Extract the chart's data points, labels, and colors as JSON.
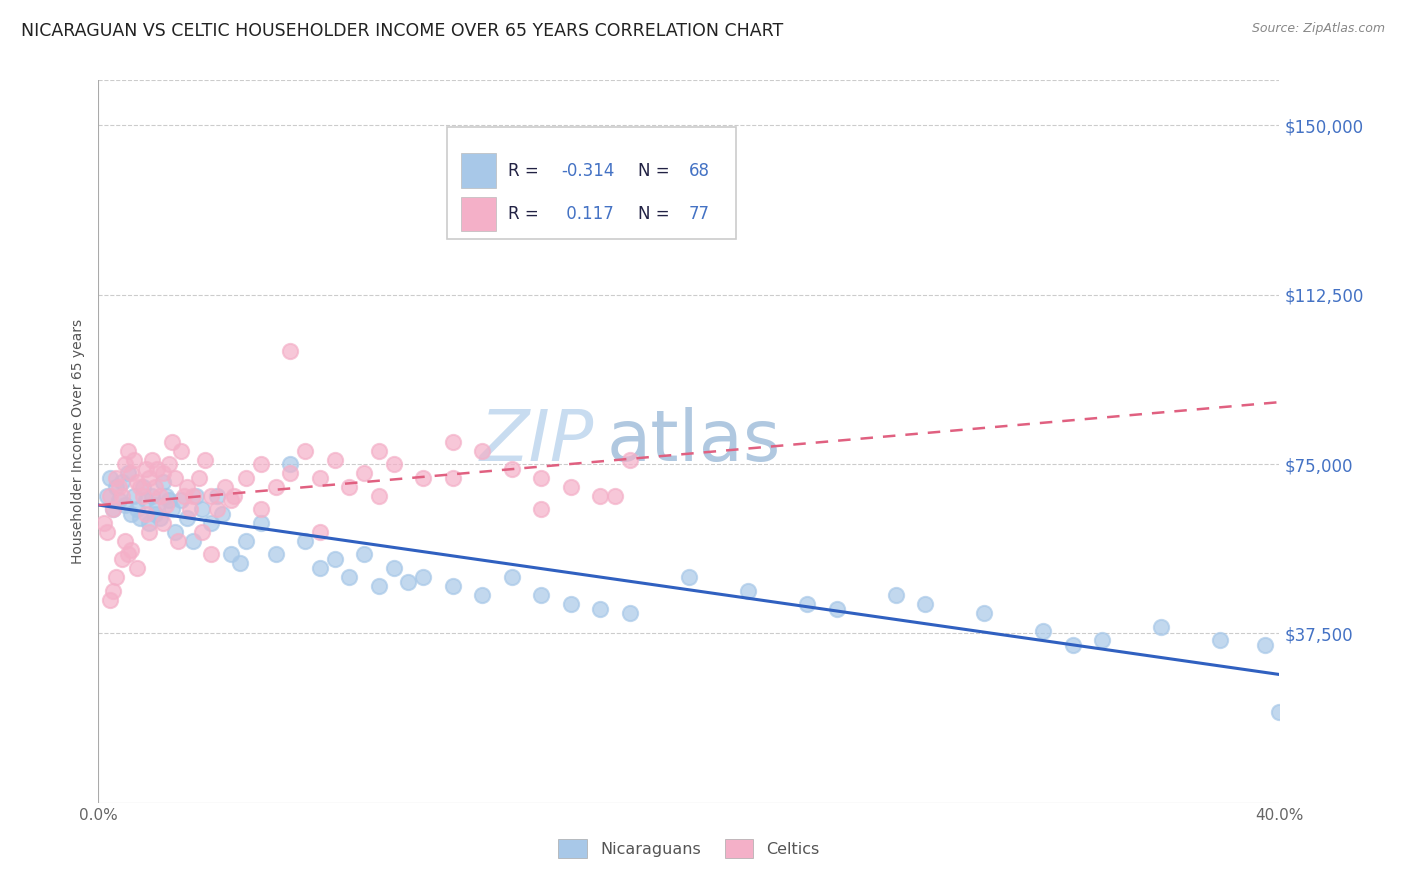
{
  "title": "NICARAGUAN VS CELTIC HOUSEHOLDER INCOME OVER 65 YEARS CORRELATION CHART",
  "source": "Source: ZipAtlas.com",
  "ylabel": "Householder Income Over 65 years",
  "yticks_labels": [
    "$150,000",
    "$112,500",
    "$75,000",
    "$37,500"
  ],
  "ytick_values": [
    150000,
    112500,
    75000,
    37500
  ],
  "ymin": 0,
  "ymax": 160000,
  "xmin": 0,
  "xmax": 40,
  "blue_R": -0.314,
  "blue_N": 68,
  "pink_R": 0.117,
  "pink_N": 77,
  "blue_color": "#A8C8E8",
  "pink_color": "#F4B0C8",
  "blue_line_color": "#3060C0",
  "pink_line_color": "#E06080",
  "background_color": "#FFFFFF",
  "title_color": "#222222",
  "title_fontsize": 12.5,
  "watermark_text": "ZIP",
  "watermark_text2": "atlas",
  "watermark_color1": "#C8DCF0",
  "watermark_color2": "#B0C8E0",
  "legend_border_color": "#CCCCCC",
  "grid_color": "#CCCCCC",
  "ytick_color": "#4472C4",
  "xtick_color": "#666666",
  "note_color": "#999999",
  "blue_scatter_x": [
    0.3,
    0.4,
    0.5,
    0.6,
    0.7,
    0.8,
    0.9,
    1.0,
    1.1,
    1.2,
    1.3,
    1.4,
    1.5,
    1.6,
    1.7,
    1.8,
    1.9,
    2.0,
    2.1,
    2.2,
    2.3,
    2.5,
    2.6,
    2.8,
    3.0,
    3.2,
    3.5,
    3.8,
    4.0,
    4.2,
    4.5,
    5.0,
    5.5,
    6.0,
    7.0,
    7.5,
    8.0,
    8.5,
    9.0,
    9.5,
    10.0,
    11.0,
    12.0,
    13.0,
    14.0,
    15.0,
    16.0,
    17.0,
    18.0,
    20.0,
    22.0,
    25.0,
    27.0,
    28.0,
    30.0,
    32.0,
    34.0,
    36.0,
    38.0,
    40.0,
    2.4,
    3.3,
    4.8,
    6.5,
    10.5,
    24.0,
    33.0,
    39.5
  ],
  "blue_scatter_y": [
    68000,
    72000,
    65000,
    70000,
    67000,
    71000,
    66000,
    73000,
    64000,
    68000,
    65000,
    63000,
    70000,
    67000,
    62000,
    68000,
    64000,
    66000,
    63000,
    71000,
    68000,
    65000,
    60000,
    67000,
    63000,
    58000,
    65000,
    62000,
    68000,
    64000,
    55000,
    58000,
    62000,
    55000,
    58000,
    52000,
    54000,
    50000,
    55000,
    48000,
    52000,
    50000,
    48000,
    46000,
    50000,
    46000,
    44000,
    43000,
    42000,
    50000,
    47000,
    43000,
    46000,
    44000,
    42000,
    38000,
    36000,
    39000,
    36000,
    20000,
    67000,
    68000,
    53000,
    75000,
    49000,
    44000,
    35000,
    35000
  ],
  "pink_scatter_x": [
    0.2,
    0.3,
    0.4,
    0.5,
    0.6,
    0.7,
    0.8,
    0.9,
    1.0,
    1.1,
    1.2,
    1.3,
    1.4,
    1.5,
    1.6,
    1.7,
    1.8,
    1.9,
    2.0,
    2.1,
    2.2,
    2.3,
    2.4,
    2.5,
    2.6,
    2.8,
    3.0,
    3.2,
    3.4,
    3.6,
    3.8,
    4.0,
    4.3,
    4.6,
    5.0,
    5.5,
    6.0,
    6.5,
    7.0,
    7.5,
    8.0,
    8.5,
    9.0,
    9.5,
    10.0,
    11.0,
    12.0,
    13.0,
    14.0,
    15.0,
    16.0,
    17.0,
    18.0,
    1.0,
    0.9,
    1.3,
    1.7,
    2.2,
    2.7,
    3.1,
    0.5,
    4.5,
    0.8,
    1.6,
    2.9,
    0.6,
    1.1,
    0.4,
    3.5,
    3.8,
    5.5,
    7.5,
    9.5,
    12.0,
    15.0,
    17.5,
    6.5
  ],
  "pink_scatter_y": [
    62000,
    60000,
    68000,
    65000,
    72000,
    70000,
    68000,
    75000,
    78000,
    73000,
    76000,
    71000,
    70000,
    68000,
    74000,
    72000,
    76000,
    70000,
    74000,
    68000,
    73000,
    66000,
    75000,
    80000,
    72000,
    78000,
    70000,
    68000,
    72000,
    76000,
    68000,
    65000,
    70000,
    68000,
    72000,
    75000,
    70000,
    73000,
    78000,
    72000,
    76000,
    70000,
    73000,
    78000,
    75000,
    72000,
    80000,
    78000,
    74000,
    72000,
    70000,
    68000,
    76000,
    55000,
    58000,
    52000,
    60000,
    62000,
    58000,
    65000,
    47000,
    67000,
    54000,
    64000,
    68000,
    50000,
    56000,
    45000,
    60000,
    55000,
    65000,
    60000,
    68000,
    72000,
    65000,
    68000,
    100000
  ]
}
